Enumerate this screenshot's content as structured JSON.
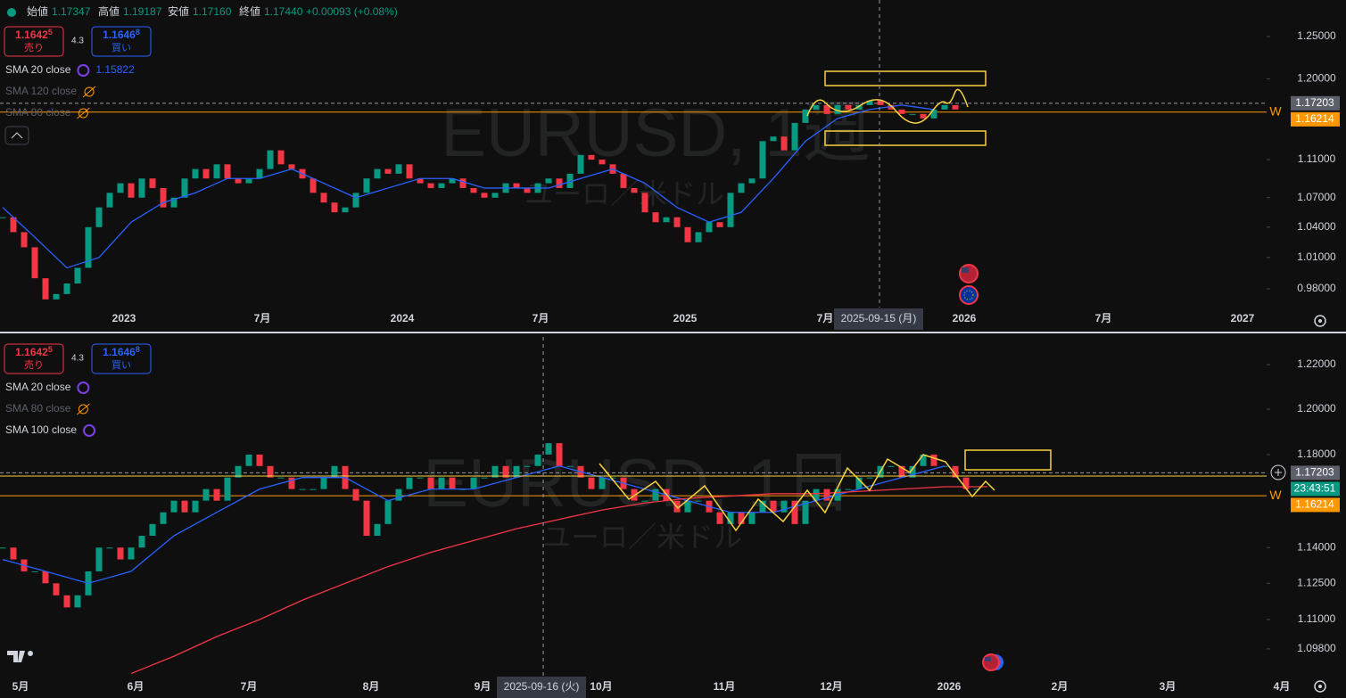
{
  "header": {
    "open_label": "始値",
    "open": "1.17347",
    "high_label": "高値",
    "high": "1.19187",
    "low_label": "安値",
    "low": "1.17160",
    "close_label": "終値",
    "close": "1.17440",
    "change": "+0.00093 (+0.08%)"
  },
  "panels": [
    {
      "sell": {
        "price": "1.1642",
        "pip": "5",
        "label": "売り"
      },
      "spread": "4.3",
      "buy": {
        "price": "1.1646",
        "pip": "8",
        "label": "買い"
      },
      "indicators": [
        {
          "name": "SMA 20 close",
          "value": "1.15822",
          "hidden": false
        },
        {
          "name": "SMA 120 close",
          "hidden": true
        },
        {
          "name": "SMA 80 close",
          "hidden": true
        }
      ],
      "watermark": "EURUSD, 1週",
      "watermark_sub": "ユーロ／米ドル",
      "chart": {
        "type": "candlestick",
        "log_scale": true,
        "ylim": [
          0.9624,
          1.2948
        ],
        "yticks": [
          {
            "value": 1.25,
            "label": "1.25000"
          },
          {
            "value": 1.2,
            "label": "1.20000"
          },
          {
            "value": 1.11,
            "label": "1.11000"
          },
          {
            "value": 1.07,
            "label": "1.07000"
          },
          {
            "value": 1.04,
            "label": "1.04000"
          },
          {
            "value": 1.01,
            "label": "1.01000"
          },
          {
            "value": 0.98,
            "label": "0.98000"
          }
        ],
        "x_labels": [
          "2023",
          "7月",
          "2024",
          "7月",
          "2025",
          "7月",
          "2026",
          "7月",
          "2027"
        ],
        "crosshair_label": "2025-09-15 (月)",
        "up_color": "#089981",
        "down_color": "#f23645",
        "closes": [
          1.05,
          1.035,
          1.02,
          0.99,
          0.97,
          0.975,
          0.985,
          1.0,
          1.04,
          1.06,
          1.075,
          1.085,
          1.07,
          1.09,
          1.08,
          1.06,
          1.07,
          1.09,
          1.1,
          1.09,
          1.105,
          1.09,
          1.085,
          1.09,
          1.1,
          1.12,
          1.105,
          1.1,
          1.09,
          1.075,
          1.065,
          1.055,
          1.06,
          1.075,
          1.09,
          1.1,
          1.095,
          1.105,
          1.09,
          1.085,
          1.08,
          1.085,
          1.09,
          1.08,
          1.075,
          1.07,
          1.075,
          1.085,
          1.08,
          1.075,
          1.085,
          1.09,
          1.08,
          1.095,
          1.115,
          1.11,
          1.105,
          1.095,
          1.08,
          1.075,
          1.055,
          1.045,
          1.05,
          1.04,
          1.025,
          1.035,
          1.045,
          1.04,
          1.075,
          1.085,
          1.09,
          1.13,
          1.135,
          1.12,
          1.15,
          1.165,
          1.17,
          1.16,
          1.17,
          1.165,
          1.17,
          1.175,
          1.17,
          1.165,
          1.16,
          1.16,
          1.155,
          1.165,
          1.17,
          1.165
        ],
        "ma_lines": [
          {
            "color": "#2962ff",
            "values": [
              1.06,
              1.03,
              1.0,
              1.01,
              1.045,
              1.065,
              1.075,
              1.09,
              1.09,
              1.1,
              1.085,
              1.07,
              1.08,
              1.09,
              1.09,
              1.08,
              1.08,
              1.08,
              1.09,
              1.1,
              1.085,
              1.06,
              1.045,
              1.055,
              1.09,
              1.13,
              1.155,
              1.165,
              1.17,
              1.165
            ]
          }
        ],
        "price_tags": [
          {
            "value": 1.17203,
            "label": "1.17203",
            "color": "#5d606b",
            "dashed": true
          },
          {
            "value": 1.16214,
            "label": "1.16214",
            "color": "#ff9800",
            "dashed": false
          }
        ]
      }
    },
    {
      "sell": {
        "price": "1.1642",
        "pip": "5",
        "label": "売り"
      },
      "spread": "4.3",
      "buy": {
        "price": "1.1646",
        "pip": "8",
        "label": "買い"
      },
      "indicators": [
        {
          "name": "SMA 20 close",
          "hidden": false
        },
        {
          "name": "SMA 80 close",
          "hidden": true
        },
        {
          "name": "SMA 100 close",
          "hidden": false
        }
      ],
      "watermark": "EURUSD, 1日",
      "watermark_sub": "ユーロ／米ドル",
      "chart": {
        "type": "candlestick",
        "log_scale": true,
        "ylim": [
          1.0864,
          1.2338
        ],
        "yticks": [
          {
            "value": 1.22,
            "label": "1.22000"
          },
          {
            "value": 1.2,
            "label": "1.20000"
          },
          {
            "value": 1.18,
            "label": "1.18000"
          },
          {
            "value": 1.14,
            "label": "1.14000"
          },
          {
            "value": 1.125,
            "label": "1.12500"
          },
          {
            "value": 1.11,
            "label": "1.11000"
          },
          {
            "value": 1.098,
            "label": "1.09800"
          }
        ],
        "x_labels": [
          "5月",
          "6月",
          "7月",
          "8月",
          "9月",
          "10月",
          "11月",
          "12月",
          "2026",
          "2月",
          "3月",
          "4月"
        ],
        "crosshair_label": "2025-09-16 (火)",
        "up_color": "#089981",
        "down_color": "#f23645",
        "closes": [
          1.14,
          1.135,
          1.13,
          1.13,
          1.125,
          1.12,
          1.115,
          1.12,
          1.13,
          1.14,
          1.14,
          1.135,
          1.14,
          1.145,
          1.15,
          1.155,
          1.16,
          1.155,
          1.16,
          1.165,
          1.16,
          1.17,
          1.175,
          1.18,
          1.175,
          1.17,
          1.17,
          1.165,
          1.165,
          1.165,
          1.17,
          1.175,
          1.165,
          1.16,
          1.145,
          1.15,
          1.16,
          1.165,
          1.17,
          1.17,
          1.165,
          1.17,
          1.165,
          1.165,
          1.17,
          1.17,
          1.175,
          1.17,
          1.175,
          1.175,
          1.18,
          1.185,
          1.175,
          1.175,
          1.17,
          1.165,
          1.17,
          1.17,
          1.165,
          1.16,
          1.16,
          1.165,
          1.16,
          1.155,
          1.16,
          1.16,
          1.155,
          1.15,
          1.155,
          1.15,
          1.155,
          1.16,
          1.155,
          1.16,
          1.15,
          1.16,
          1.165,
          1.16,
          1.165,
          1.165,
          1.17,
          1.17,
          1.175,
          1.175,
          1.17,
          1.175,
          1.18,
          1.175,
          1.175,
          1.17,
          1.165,
          1.165
        ],
        "ma_lines": [
          {
            "color": "#2962ff",
            "values": [
              1.135,
              1.13,
              1.125,
              1.13,
              1.145,
              1.155,
              1.165,
              1.17,
              1.17,
              1.16,
              1.165,
              1.165,
              1.17,
              1.175,
              1.17,
              1.165,
              1.16,
              1.155,
              1.155,
              1.16,
              1.165,
              1.17,
              1.175
            ]
          },
          {
            "color": "#f23645",
            "values": [
              1.088,
              1.095,
              1.103,
              1.11,
              1.118,
              1.125,
              1.132,
              1.138,
              1.143,
              1.148,
              1.152,
              1.156,
              1.159,
              1.161,
              1.162,
              1.163,
              1.163,
              1.164,
              1.165,
              1.166,
              1.166
            ]
          }
        ],
        "price_tags": [
          {
            "value": 1.17203,
            "label": "1.17203",
            "color": "#5d606b",
            "dashed": true
          },
          {
            "value": 1.16214,
            "label": "1.16214",
            "color": "#ff9800",
            "dashed": false
          }
        ],
        "countdown": {
          "label": "23:43:51",
          "color": "#089981"
        }
      }
    }
  ]
}
